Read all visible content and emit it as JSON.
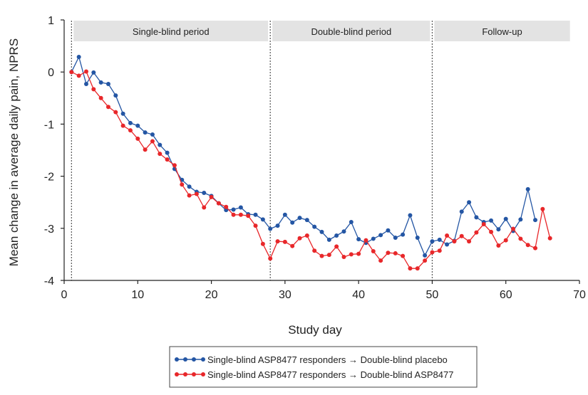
{
  "chart_data": {
    "type": "line",
    "xlabel": "Study day",
    "ylabel": "Mean change in average daily pain, NPRS",
    "xlim": [
      0,
      70
    ],
    "ylim": [
      -4,
      1
    ],
    "xticks": [
      0,
      10,
      20,
      30,
      40,
      50,
      60,
      70
    ],
    "yticks": [
      1,
      0,
      -1,
      -2,
      -3,
      -4
    ],
    "grid": false,
    "legend_position": "bottom-center",
    "period_dividers": [
      1,
      28,
      50
    ],
    "periods": [
      {
        "label": "Single-blind period",
        "x_start": 1,
        "x_end": 28
      },
      {
        "label": "Double-blind period",
        "x_start": 28,
        "x_end": 50
      },
      {
        "label": "Follow-up",
        "x_start": 50,
        "x_end": 69
      }
    ],
    "series": [
      {
        "name": "Single-blind ASP8477 responders → Double-blind placebo",
        "color": "#2456a4",
        "x": [
          1,
          2,
          3,
          4,
          5,
          6,
          7,
          8,
          9,
          10,
          11,
          12,
          13,
          14,
          15,
          16,
          17,
          18,
          19,
          20,
          21,
          22,
          23,
          24,
          25,
          26,
          27,
          28,
          29,
          30,
          31,
          32,
          33,
          34,
          35,
          36,
          37,
          38,
          39,
          40,
          41,
          42,
          43,
          44,
          45,
          46,
          47,
          48,
          49,
          50,
          51,
          52,
          53,
          54,
          55,
          56,
          57,
          58,
          59,
          60,
          61,
          62,
          63,
          64
        ],
        "values": [
          0,
          0.29,
          -0.23,
          -0.01,
          -0.2,
          -0.23,
          -0.45,
          -0.8,
          -0.98,
          -1.03,
          -1.16,
          -1.2,
          -1.4,
          -1.55,
          -1.86,
          -2.07,
          -2.2,
          -2.3,
          -2.32,
          -2.38,
          -2.52,
          -2.65,
          -2.64,
          -2.6,
          -2.73,
          -2.74,
          -2.83,
          -3.01,
          -2.95,
          -2.74,
          -2.89,
          -2.8,
          -2.84,
          -2.97,
          -3.07,
          -3.22,
          -3.14,
          -3.06,
          -2.88,
          -3.21,
          -3.28,
          -3.2,
          -3.13,
          -3.04,
          -3.18,
          -3.12,
          -2.75,
          -3.18,
          -3.52,
          -3.25,
          -3.22,
          -3.31,
          -3.24,
          -2.68,
          -2.5,
          -2.79,
          -2.88,
          -2.85,
          -3.02,
          -2.82,
          -3.05,
          -2.83,
          -2.25,
          -2.84
        ]
      },
      {
        "name": "Single-blind ASP8477 responders → Double-blind ASP8477",
        "color": "#e8272a",
        "x": [
          1,
          2,
          3,
          4,
          5,
          6,
          7,
          8,
          9,
          10,
          11,
          12,
          13,
          14,
          15,
          16,
          17,
          18,
          19,
          20,
          21,
          22,
          23,
          24,
          25,
          26,
          27,
          28,
          29,
          30,
          31,
          32,
          33,
          34,
          35,
          36,
          37,
          38,
          39,
          40,
          41,
          42,
          43,
          44,
          45,
          46,
          47,
          48,
          49,
          50,
          51,
          52,
          53,
          54,
          55,
          56,
          57,
          58,
          59,
          60,
          61,
          62,
          63,
          64,
          65,
          66
        ],
        "values": [
          0,
          -0.07,
          0.01,
          -0.33,
          -0.5,
          -0.67,
          -0.77,
          -1.03,
          -1.12,
          -1.28,
          -1.49,
          -1.33,
          -1.57,
          -1.68,
          -1.79,
          -2.16,
          -2.37,
          -2.34,
          -2.6,
          -2.4,
          -2.52,
          -2.59,
          -2.74,
          -2.74,
          -2.76,
          -2.95,
          -3.3,
          -3.58,
          -3.25,
          -3.26,
          -3.34,
          -3.19,
          -3.14,
          -3.43,
          -3.53,
          -3.51,
          -3.35,
          -3.55,
          -3.5,
          -3.49,
          -3.23,
          -3.44,
          -3.62,
          -3.47,
          -3.48,
          -3.53,
          -3.77,
          -3.77,
          -3.62,
          -3.46,
          -3.43,
          -3.14,
          -3.25,
          -3.15,
          -3.25,
          -3.08,
          -2.92,
          -3.07,
          -3.33,
          -3.23,
          -3.01,
          -3.2,
          -3.32,
          -3.38,
          -2.63,
          -3.19
        ]
      }
    ]
  }
}
